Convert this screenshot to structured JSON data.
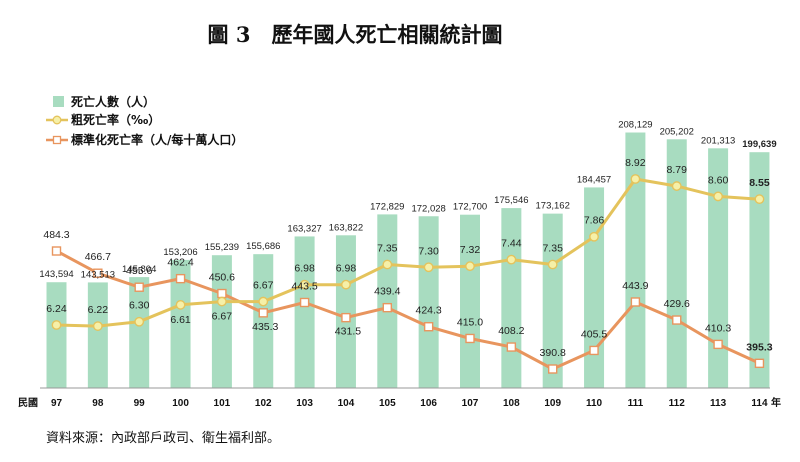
{
  "title": "圖 3　歷年國人死亡相關統計圖",
  "source": "資料來源：內政部戶政司、衛生福利部。",
  "chart_data": {
    "type": "bar",
    "categories": [
      "97",
      "98",
      "99",
      "100",
      "101",
      "102",
      "103",
      "104",
      "105",
      "106",
      "107",
      "108",
      "109",
      "110",
      "111",
      "112",
      "113",
      "114"
    ],
    "x_prefix": "民國",
    "x_suffix": "年",
    "series": [
      {
        "name": "死亡人數（人）",
        "type": "bar",
        "color": "#a8dcc0",
        "values": [
          143594,
          143513,
          145804,
          153206,
          155239,
          155686,
          163327,
          163822,
          172829,
          172028,
          172700,
          175546,
          173162,
          184457,
          208129,
          205202,
          201313,
          199639
        ],
        "labels": [
          "143,594",
          "143,513",
          "145,804",
          "153,206",
          "155,239",
          "155,686",
          "163,327",
          "163,822",
          "172,829",
          "172,028",
          "172,700",
          "175,546",
          "173,162",
          "184,457",
          "208,129",
          "205,202",
          "201,313",
          "199,639"
        ]
      },
      {
        "name": "粗死亡率（‰）",
        "type": "line",
        "color": "#e4c35c",
        "marker_fill": "#f6f0a8",
        "marker": "circle",
        "values": [
          6.24,
          6.22,
          6.3,
          6.61,
          6.67,
          6.67,
          6.98,
          6.98,
          7.35,
          7.3,
          7.32,
          7.44,
          7.35,
          7.86,
          8.92,
          8.79,
          8.6,
          8.55
        ],
        "labels": [
          "6.24",
          "6.22",
          "6.30",
          "6.61",
          "6.67",
          "6.67",
          "6.98",
          "6.98",
          "7.35",
          "7.30",
          "7.32",
          "7.44",
          "7.35",
          "7.86",
          "8.92",
          "8.79",
          "8.60",
          "8.55"
        ]
      },
      {
        "name": "標準化死亡率（人/每十萬人口）",
        "type": "line",
        "color": "#e8955e",
        "marker_fill": "#ffffff",
        "marker": "square",
        "values": [
          484.3,
          466.7,
          455.6,
          462.4,
          450.6,
          435.3,
          443.5,
          431.5,
          439.4,
          424.3,
          415.0,
          408.2,
          390.8,
          405.5,
          443.9,
          429.6,
          410.3,
          395.3
        ],
        "labels": [
          "484.3",
          "466.7",
          "455.6",
          "462.4",
          "450.6",
          "435.3",
          "443.5",
          "431.5",
          "439.4",
          "424.3",
          "415.0",
          "408.2",
          "390.8",
          "405.5",
          "443.9",
          "429.6",
          "410.3",
          "395.3"
        ]
      }
    ],
    "legend_position": "top-left",
    "grid": false
  }
}
